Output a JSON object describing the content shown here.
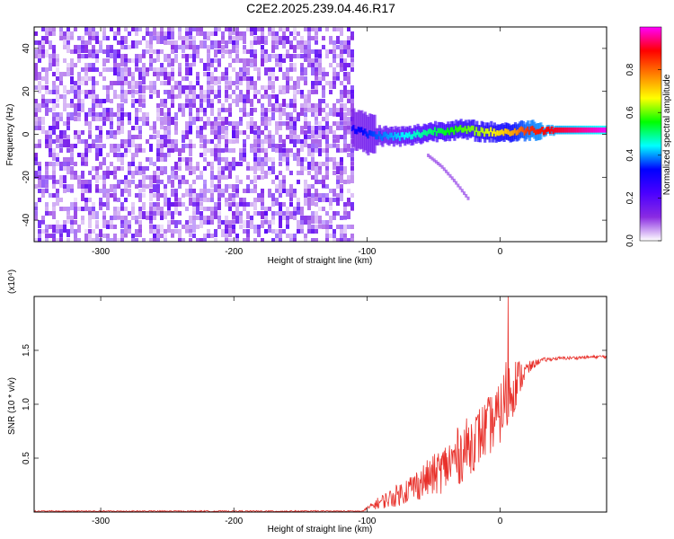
{
  "figure_title": "C2E2.2025.239.04.46.R17",
  "colors": {
    "snr_line": "#e8302a",
    "axis": "#000000",
    "background": "#ffffff"
  },
  "chart_data": [
    {
      "type": "heatmap",
      "name": "spectrogram",
      "xlabel": "Height of straight line (km)",
      "ylabel": "Frequency (Hz)",
      "xlim": [
        -350,
        80
      ],
      "ylim": [
        -50,
        50
      ],
      "xticks": [
        -300,
        -200,
        -100,
        0
      ],
      "yticks": [
        -40,
        -20,
        0,
        20,
        40
      ],
      "colorbar": {
        "label": "Normalized spectral amplitude",
        "range": [
          0,
          1
        ],
        "ticks": [
          "0.0",
          "0.2",
          "0.4",
          "0.6",
          "0.8"
        ],
        "tick_values": [
          0.0,
          0.2,
          0.4,
          0.6,
          0.8
        ],
        "colormap": [
          "#ffffff",
          "#8a2be2",
          "#4b00ff",
          "#0000ff",
          "#00ffff",
          "#00ff00",
          "#ffff00",
          "#ff8000",
          "#ff0000",
          "#ff00ff"
        ]
      },
      "noise_region": {
        "x_range": [
          -350,
          -112
        ],
        "f_range": [
          -50,
          50
        ],
        "level": 0.1
      },
      "signal_track": {
        "height_km": [
          -112,
          -100,
          -85,
          -70,
          -55,
          -40,
          -25,
          -10,
          0,
          10,
          20,
          40,
          60,
          80
        ],
        "freq_hz": [
          3,
          0,
          -1,
          -1,
          1,
          2,
          2,
          1,
          1,
          1,
          2,
          2,
          2,
          2
        ],
        "amplitude": [
          0.3,
          0.35,
          0.4,
          0.45,
          0.5,
          0.55,
          0.6,
          0.65,
          0.7,
          0.75,
          0.85,
          0.9,
          0.95,
          1.0
        ]
      },
      "faint_branch": {
        "height_km": [
          -55,
          -45,
          -35,
          -25
        ],
        "freq_hz": [
          -10,
          -15,
          -22,
          -30
        ],
        "level": 0.12
      }
    },
    {
      "type": "line",
      "name": "snr",
      "xlabel": "Height of straight line (km)",
      "ylabel": "SNR (10 * v/v)",
      "scale_label": "(x10⁴)",
      "xlim": [
        -350,
        80
      ],
      "ylim": [
        0,
        2.0
      ],
      "xticks": [
        -300,
        -200,
        -100,
        0
      ],
      "yticks": [
        "0.5",
        "1.0",
        "1.5"
      ],
      "ytick_values": [
        0.5,
        1.0,
        1.5
      ],
      "series": [
        {
          "name": "SNR",
          "x": [
            -350,
            -200,
            -105,
            -100,
            -90,
            -80,
            -70,
            -60,
            -50,
            -40,
            -30,
            -20,
            -10,
            0,
            5,
            10,
            15,
            20,
            25,
            30,
            40,
            60,
            80
          ],
          "y": [
            0.0,
            0.0,
            0.0,
            0.03,
            0.08,
            0.12,
            0.18,
            0.24,
            0.3,
            0.38,
            0.48,
            0.6,
            0.72,
            0.85,
            1.0,
            1.12,
            1.22,
            1.3,
            1.36,
            1.4,
            1.42,
            1.43,
            1.44
          ],
          "noise_amplitude": [
            0.0,
            0.0,
            0.0,
            0.02,
            0.08,
            0.12,
            0.16,
            0.2,
            0.24,
            0.3,
            0.35,
            0.35,
            0.35,
            0.35,
            0.5,
            0.35,
            0.2,
            0.1,
            0.05,
            0.03,
            0.02,
            0.02,
            0.02
          ],
          "peak": {
            "x": 6,
            "y": 2.0
          }
        }
      ]
    }
  ]
}
